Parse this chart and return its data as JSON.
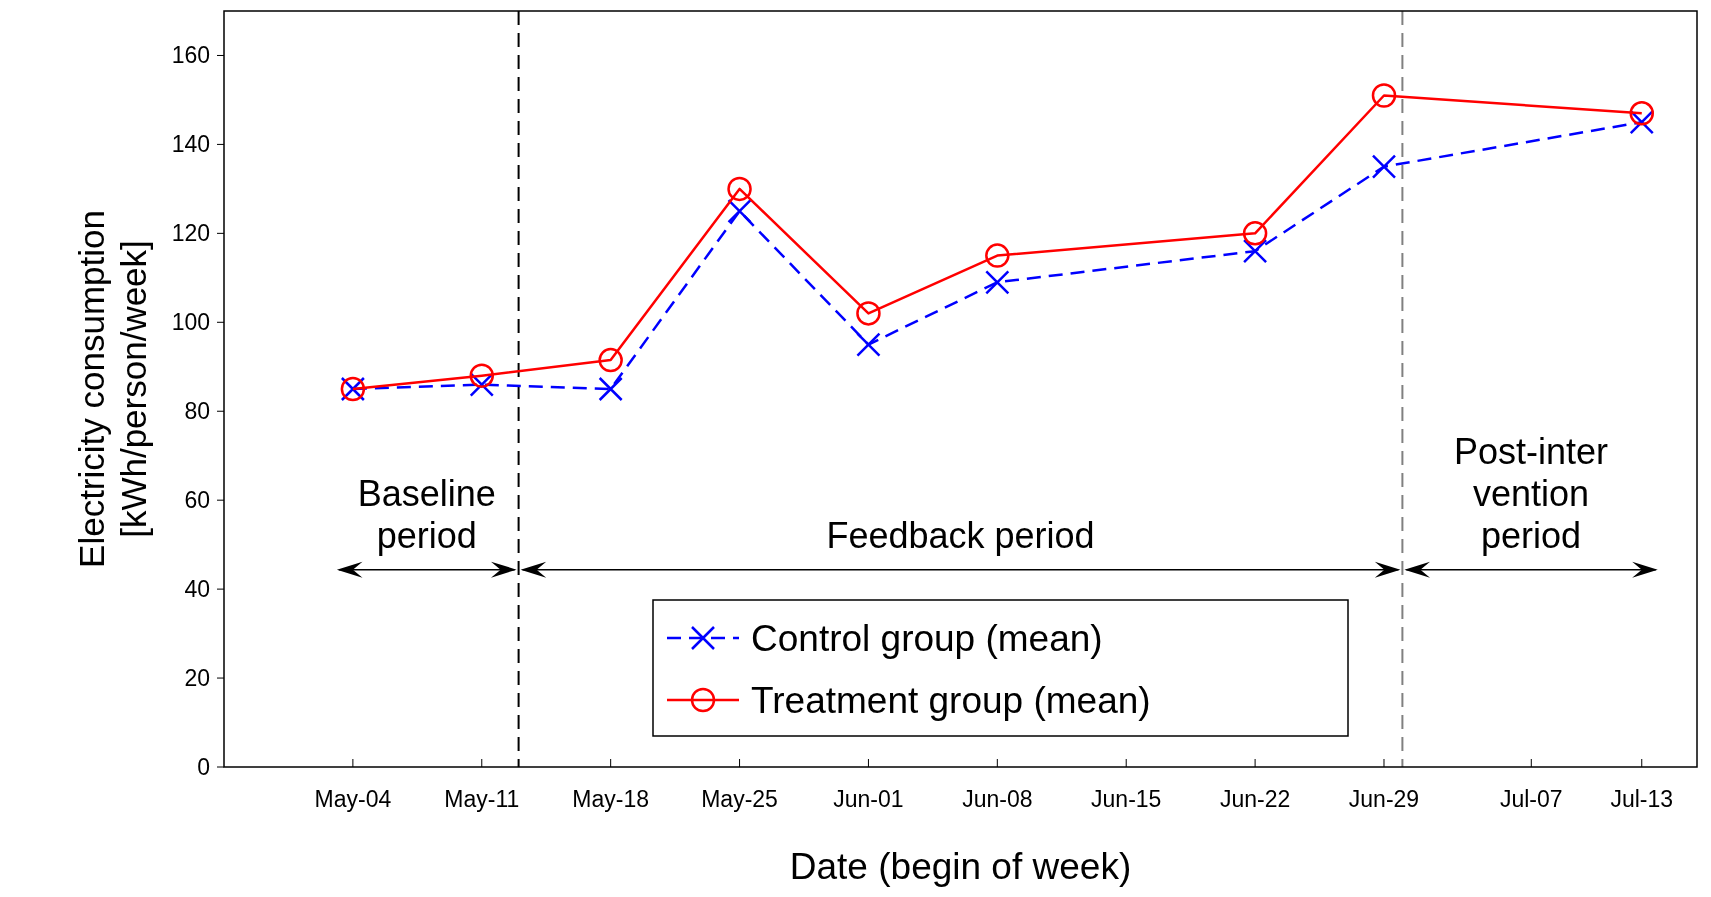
{
  "chart_data": {
    "type": "line",
    "xlabel": "Date (begin of week)",
    "ylabel": "Electricity consumption\n[kWh/person/week]",
    "x": [
      "--05-04",
      "--05-11",
      "--05-18",
      "--05-25",
      "--06-01",
      "--06-08",
      "--06-22",
      "--06-29",
      "--07-13"
    ],
    "xlim": [
      "--04-27",
      "--07-16"
    ],
    "xticks": [
      {
        "value": "--05-04",
        "label": "May-04"
      },
      {
        "value": "--05-11",
        "label": "May-11"
      },
      {
        "value": "--05-18",
        "label": "May-18"
      },
      {
        "value": "--05-25",
        "label": "May-25"
      },
      {
        "value": "--06-01",
        "label": "Jun-01"
      },
      {
        "value": "--06-08",
        "label": "Jun-08"
      },
      {
        "value": "--06-15",
        "label": "Jun-15"
      },
      {
        "value": "--06-22",
        "label": "Jun-22"
      },
      {
        "value": "--06-29",
        "label": "Jun-29"
      },
      {
        "value": "--07-07",
        "label": "Jul-07"
      },
      {
        "value": "--07-13",
        "label": "Jul-13"
      }
    ],
    "ylim": [
      0,
      170
    ],
    "yticks": [
      0,
      20,
      40,
      60,
      80,
      100,
      120,
      140,
      160
    ],
    "series": [
      {
        "name": "Control group (mean)",
        "color": "#0000ff",
        "marker": "cross",
        "line_style": "dashed",
        "values": [
          85,
          86,
          85,
          125,
          95,
          109,
          116,
          135,
          145
        ]
      },
      {
        "name": "Treatment group (mean)",
        "color": "#ff0000",
        "marker": "circle",
        "line_style": "solid",
        "values": [
          85,
          88,
          91.5,
          130,
          102,
          115,
          120,
          151,
          147
        ]
      }
    ],
    "ref_lines": [
      {
        "axis": "x",
        "value": "--05-13",
        "color": "#000000",
        "line_style": "dashed"
      },
      {
        "axis": "x",
        "value": "--06-30",
        "color": "#808080",
        "line_style": "dashed"
      }
    ],
    "annotations": [
      "Baseline period",
      "Feedback period",
      "Post-inter vention period"
    ],
    "legend": "bottom",
    "grid": false
  }
}
